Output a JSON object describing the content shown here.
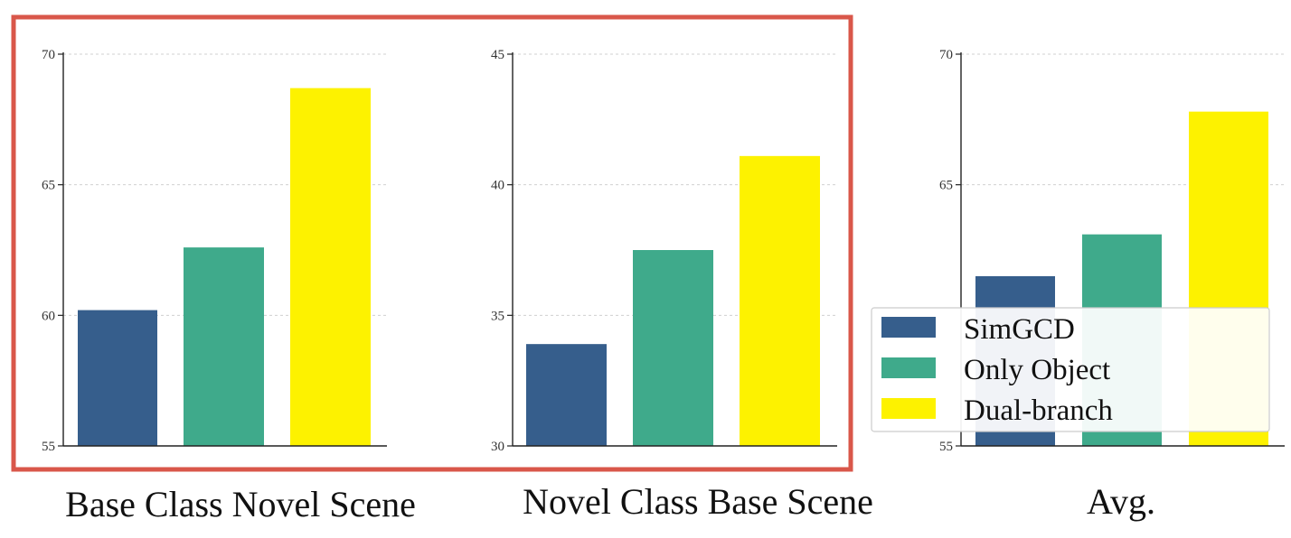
{
  "colors": {
    "highlight_frame": "#d9574a",
    "axis": "#222222",
    "grid": "#d0d0d0",
    "series": [
      "#365e8c",
      "#3faa8b",
      "#fdf200"
    ]
  },
  "legend": {
    "placement": "right-over-third-chart",
    "entries": [
      "SimGCD",
      "Only Object",
      "Dual-branch"
    ]
  },
  "highlight": {
    "description_panels": [
      0,
      1
    ]
  },
  "chart_data": [
    {
      "type": "bar",
      "caption": "Base Class Novel Scene",
      "categories": [
        "SimGCD",
        "Only Object",
        "Dual-branch"
      ],
      "series": [
        {
          "values": [
            60.2,
            62.6,
            68.7
          ]
        }
      ],
      "ylim": [
        55,
        70
      ],
      "yticks": [
        "55",
        "60",
        "65",
        "70"
      ],
      "grid": true
    },
    {
      "type": "bar",
      "caption": "Novel Class Base Scene",
      "categories": [
        "SimGCD",
        "Only Object",
        "Dual-branch"
      ],
      "series": [
        {
          "values": [
            33.9,
            37.5,
            41.1
          ]
        }
      ],
      "ylim": [
        30,
        45
      ],
      "yticks": [
        "30",
        "35",
        "40",
        "45"
      ],
      "grid": true
    },
    {
      "type": "bar",
      "caption": "Avg.",
      "categories": [
        "SimGCD",
        "Only Object",
        "Dual-branch"
      ],
      "series": [
        {
          "values": [
            61.5,
            63.1,
            67.8
          ]
        }
      ],
      "ylim": [
        55,
        70
      ],
      "yticks": [
        "55",
        "65",
        "70"
      ],
      "grid": true
    }
  ]
}
